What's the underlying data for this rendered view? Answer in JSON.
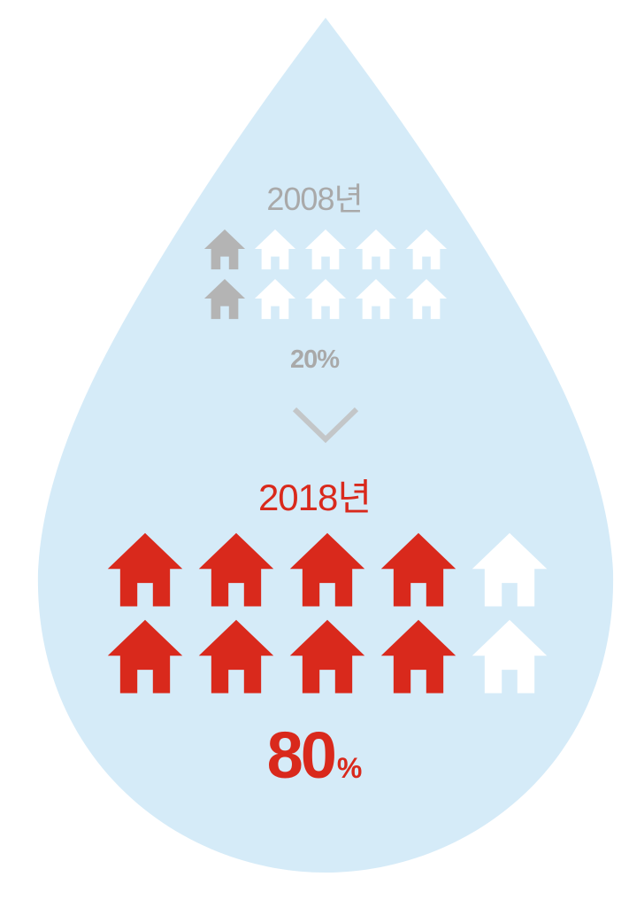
{
  "period_2008": {
    "year_label": "2008년",
    "percent_label": "20%",
    "filled_houses": 2,
    "total_houses": 10
  },
  "period_2018": {
    "year_label": "2018년",
    "percent_value": "80",
    "percent_unit": "%",
    "filled_houses": 8,
    "total_houses": 10
  },
  "colors": {
    "drop": "#d5ebf8",
    "house_2008_filled": "#b4b4b4",
    "house_2018_filled": "#d9291c",
    "house_empty": "#ffffff",
    "text_2008": "#a9a9a9",
    "text_2018": "#d9291c",
    "arrow": "#c3c6c8"
  },
  "icons": {
    "house": "house-icon",
    "arrow": "chevron-down-icon"
  }
}
